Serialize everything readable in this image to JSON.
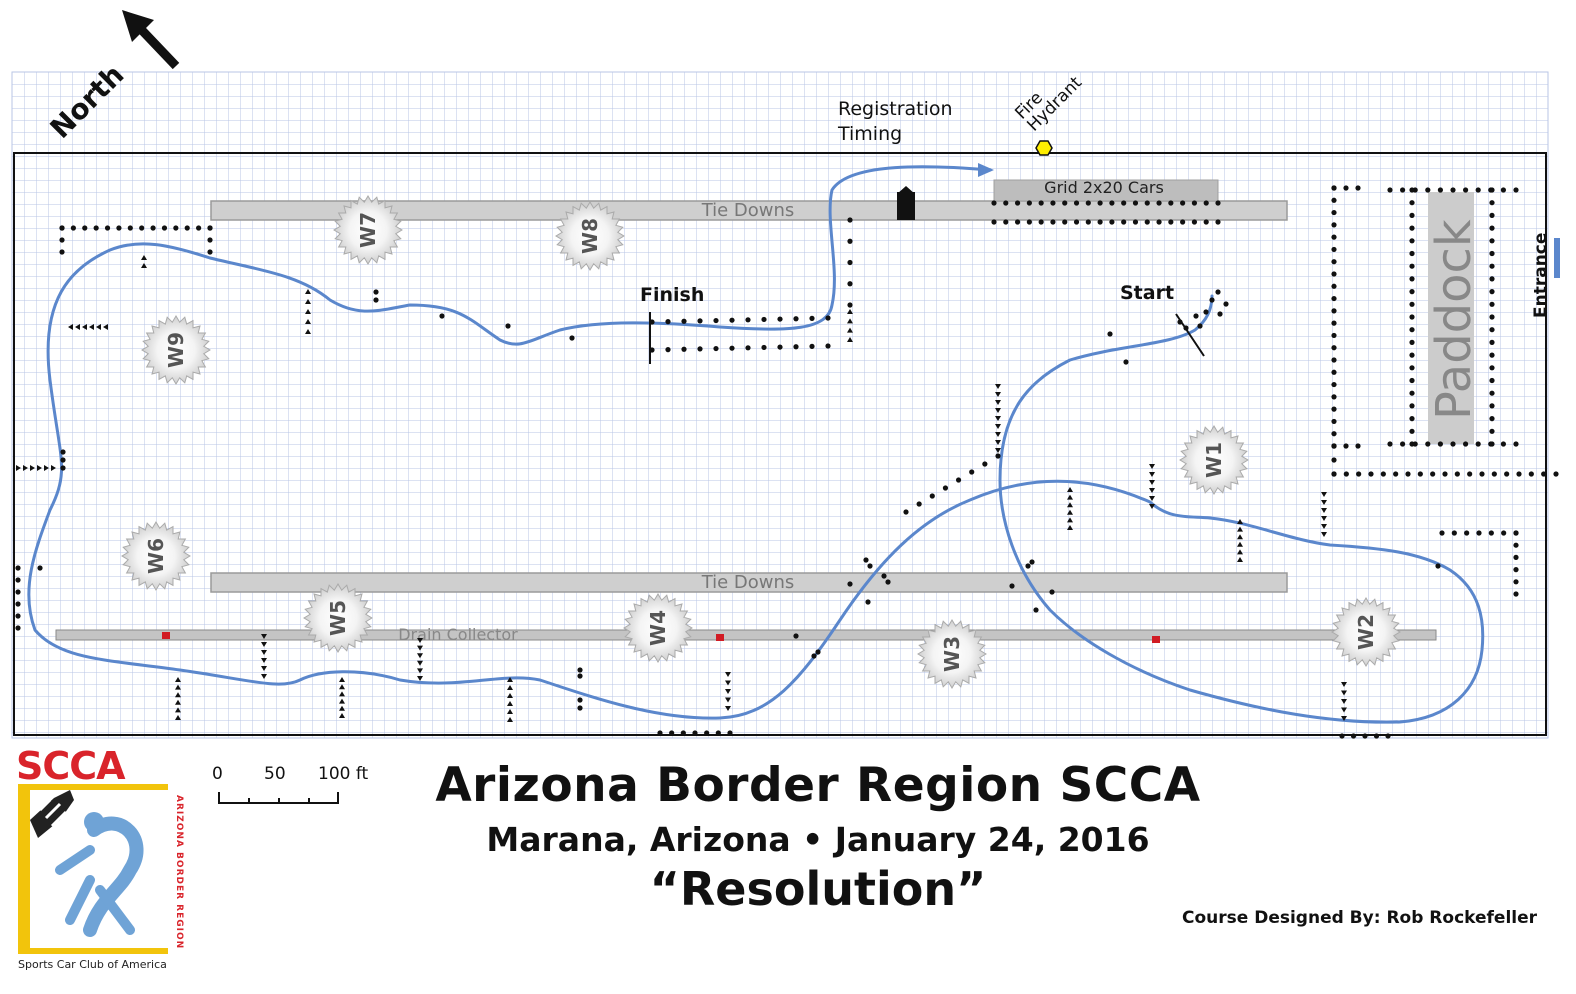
{
  "compass": {
    "label": "North"
  },
  "site_labels": {
    "registration": "Registration",
    "timing": "Timing",
    "fire": "Fire",
    "hydrant": "Hydrant",
    "grid": "Grid  2x20 Cars",
    "tie_downs_top": "Tie Downs",
    "tie_downs_bottom": "Tie Downs",
    "drain": "Drain Collector",
    "finish": "Finish",
    "start": "Start",
    "paddock": "Paddock",
    "entrance": "Entrance"
  },
  "workers": [
    "W1",
    "W2",
    "W3",
    "W4",
    "W5",
    "W6",
    "W7",
    "W8",
    "W9"
  ],
  "colors": {
    "course_line": "#5b87cc",
    "grid_line": "#b8c6e6",
    "tie_down_fill": "#c8c8c8",
    "drain_marker": "#d11b24",
    "hydrant": "#ffee00"
  },
  "scale": {
    "labels": [
      "0",
      "50",
      "100 ft"
    ]
  },
  "title": {
    "main": "Arizona Border Region SCCA",
    "sub": "Marana, Arizona • January 24, 2016",
    "course_name": "“Resolution”"
  },
  "designer": "Course Designed By:  Rob Rockefeller",
  "logo": {
    "brand": "SCCA",
    "region": "ARIZONA BORDER REGION",
    "org": "Sports Car Club of America"
  }
}
